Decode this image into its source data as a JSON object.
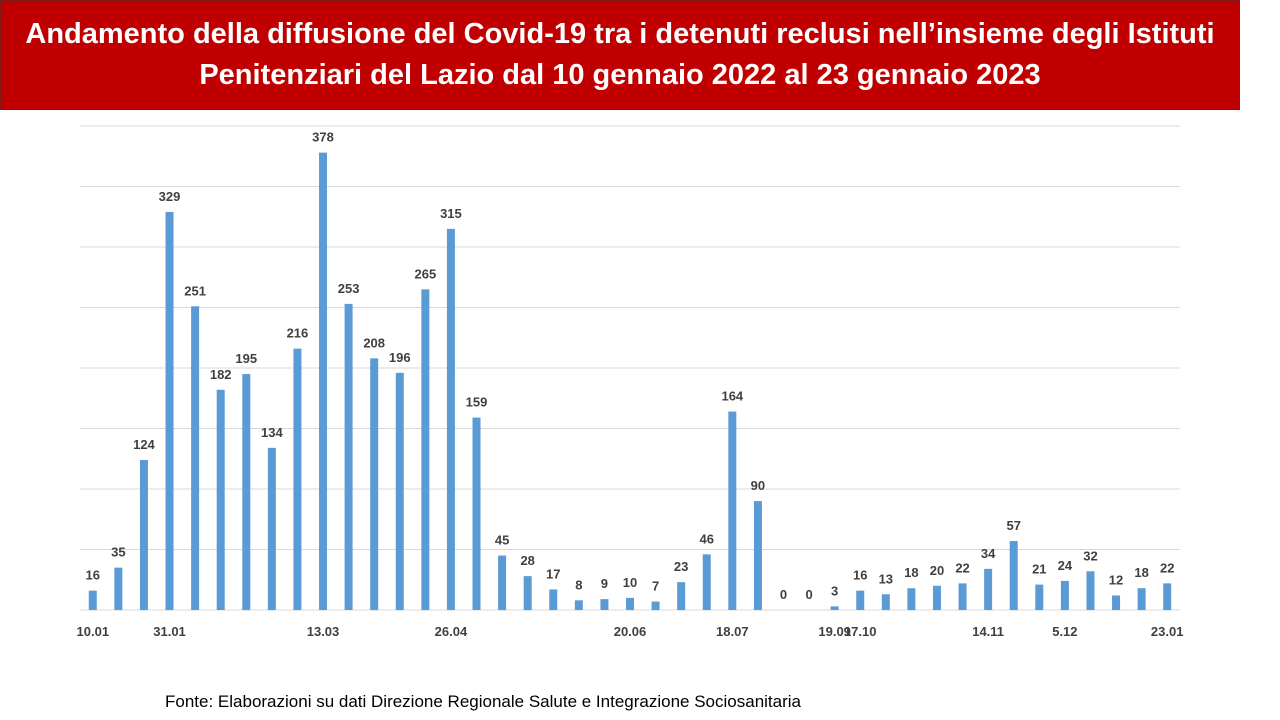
{
  "header": {
    "title": "Andamento della diffusione del Covid-19 tra i detenuti reclusi nell’insieme degli Istituti Penitenziari del Lazio dal 10 gennaio 2022 al 23 gennaio 2023"
  },
  "footer": {
    "source": "Fonte: Elaborazioni su dati Direzione Regionale Salute e Integrazione Sociosanitaria"
  },
  "colors": {
    "banner": "#c00000",
    "bar": "#5b9bd5",
    "grid": "#d9d9d9"
  },
  "chart_data": {
    "type": "bar",
    "title": "Andamento della diffusione del Covid-19 tra i detenuti reclusi nell’insieme degli Istituti Penitenziari del Lazio dal 10 gennaio 2022 al 23 gennaio 2023",
    "xlabel": "",
    "ylabel": "",
    "ylim": [
      0,
      400
    ],
    "grid": true,
    "legend": "none",
    "y_tick_labels_shown": false,
    "categories": [
      "10.01",
      "",
      "",
      "31.01",
      "",
      "",
      "",
      "",
      "",
      "13.03",
      "",
      "",
      "",
      "",
      "26.04",
      "",
      "",
      "",
      "",
      "",
      "",
      "20.06",
      "",
      "",
      "",
      "18.07",
      "",
      "",
      "",
      "19.09",
      "17.10",
      "",
      "",
      "",
      "",
      "14.11",
      "",
      "",
      "5.12",
      "",
      "",
      "",
      "23.01"
    ],
    "values": [
      16,
      35,
      124,
      329,
      251,
      182,
      195,
      134,
      216,
      378,
      253,
      208,
      196,
      265,
      315,
      159,
      45,
      28,
      17,
      8,
      9,
      10,
      7,
      23,
      46,
      164,
      90,
      0,
      0,
      3,
      16,
      13,
      18,
      20,
      22,
      34,
      57,
      21,
      24,
      32,
      12,
      18,
      22
    ],
    "gridlines": [
      50,
      100,
      150,
      200,
      250,
      300,
      350,
      400
    ]
  }
}
